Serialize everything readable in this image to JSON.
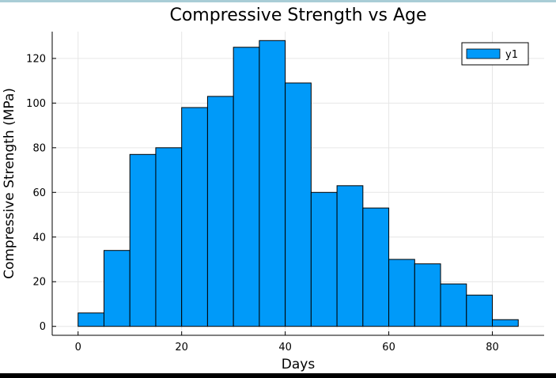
{
  "chart_data": {
    "type": "bar",
    "title": "Compressive Strength vs Age",
    "xlabel": "Days",
    "ylabel": "Compressive Strength (MPa)",
    "bin_edges": [
      0,
      5,
      10,
      15,
      20,
      25,
      30,
      35,
      40,
      45,
      50,
      55,
      60,
      65,
      70,
      75,
      80,
      85
    ],
    "values": [
      6,
      34,
      77,
      80,
      98,
      103,
      125,
      128,
      109,
      60,
      63,
      53,
      30,
      28,
      19,
      14,
      3
    ],
    "xlim": [
      -5,
      90
    ],
    "ylim": [
      -4,
      132
    ],
    "xticks": [
      0,
      20,
      40,
      60,
      80
    ],
    "yticks": [
      0,
      20,
      40,
      60,
      80,
      100,
      120
    ],
    "grid": true,
    "legend": {
      "placement": "top-right",
      "entries": [
        "y1"
      ]
    },
    "colors": {
      "bar": "#009af9",
      "edge": "#000000"
    }
  }
}
